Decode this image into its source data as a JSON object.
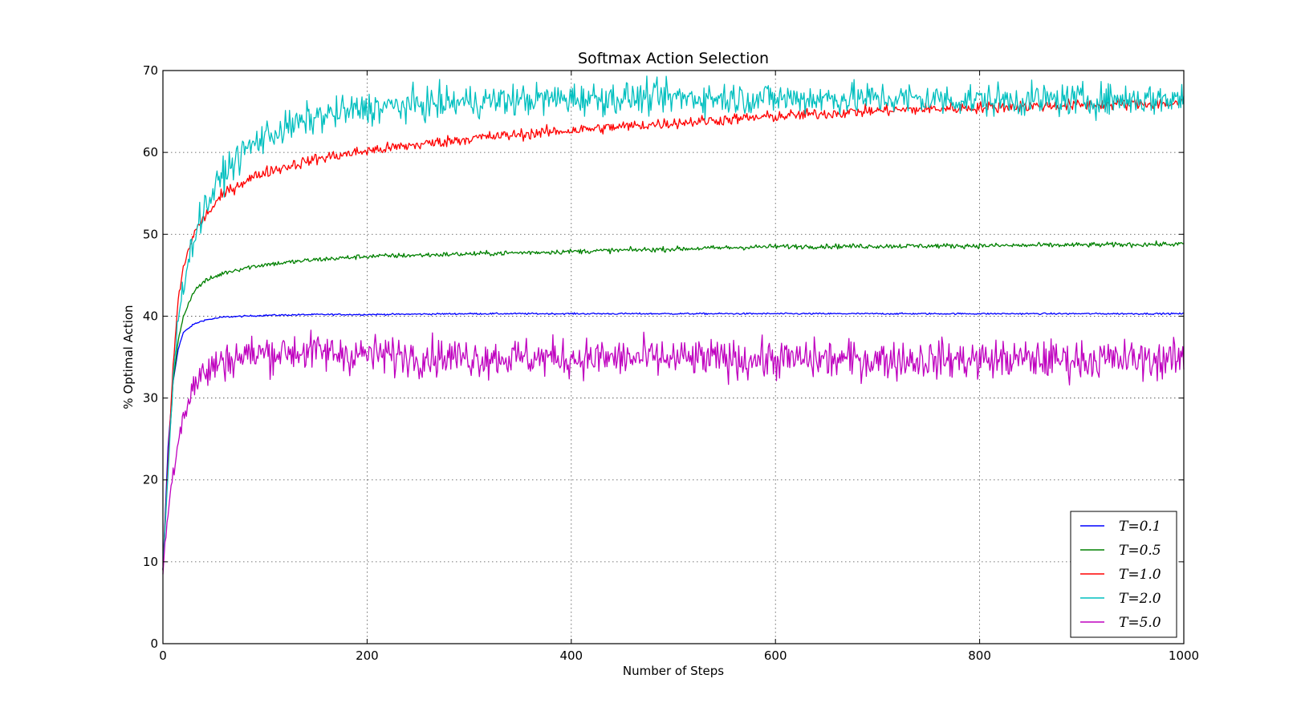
{
  "chart_data": {
    "type": "line",
    "title": "Softmax Action Selection",
    "xlabel": "Number of Steps",
    "ylabel": "% Optimal Action",
    "xlim": [
      0,
      1000
    ],
    "ylim": [
      0,
      70
    ],
    "xticks": [
      0,
      200,
      400,
      600,
      800,
      1000
    ],
    "yticks": [
      0,
      10,
      20,
      30,
      40,
      50,
      60,
      70
    ],
    "grid": true,
    "legend_position": "lower-right",
    "series": [
      {
        "name": "T=0.1",
        "color": "#0000ff",
        "noise": 0.05,
        "x": [
          0,
          5,
          10,
          15,
          20,
          30,
          40,
          60,
          80,
          100,
          150,
          200,
          300,
          400,
          600,
          800,
          1000
        ],
        "y": [
          9,
          24,
          32,
          36,
          38,
          39,
          39.5,
          39.9,
          40,
          40.1,
          40.2,
          40.2,
          40.3,
          40.3,
          40.3,
          40.3,
          40.3
        ]
      },
      {
        "name": "T=0.5",
        "color": "#008000",
        "noise": 0.15,
        "x": [
          0,
          5,
          10,
          15,
          20,
          30,
          40,
          60,
          80,
          100,
          150,
          200,
          300,
          400,
          500,
          600,
          800,
          1000
        ],
        "y": [
          9,
          22,
          32,
          37,
          40,
          43,
          44.2,
          45.3,
          45.9,
          46.3,
          46.9,
          47.3,
          47.6,
          47.9,
          48.2,
          48.5,
          48.6,
          48.8
        ]
      },
      {
        "name": "T=1.0",
        "color": "#ff0000",
        "noise": 0.35,
        "x": [
          0,
          5,
          10,
          15,
          20,
          30,
          40,
          60,
          80,
          100,
          150,
          200,
          300,
          400,
          500,
          600,
          700,
          800,
          900,
          1000
        ],
        "y": [
          9,
          22,
          34,
          42,
          46,
          50,
          52,
          55,
          56.5,
          57.6,
          59.2,
          60.2,
          61.7,
          62.7,
          63.6,
          64.4,
          65.1,
          65.5,
          65.8,
          66
        ]
      },
      {
        "name": "T=2.0",
        "color": "#00bfbf",
        "noise": 1.0,
        "x": [
          0,
          5,
          10,
          15,
          20,
          30,
          40,
          60,
          80,
          100,
          150,
          200,
          300,
          400,
          500,
          600,
          700,
          800,
          900,
          1000
        ],
        "y": [
          9,
          21,
          32,
          40,
          44,
          49.5,
          53,
          57.5,
          60.2,
          62,
          64.3,
          65.4,
          66.2,
          66.6,
          66.7,
          66.6,
          66.6,
          66.4,
          66.4,
          66.6
        ]
      },
      {
        "name": "T=5.0",
        "color": "#bf00bf",
        "noise": 1.2,
        "x": [
          0,
          5,
          10,
          15,
          20,
          30,
          40,
          60,
          80,
          100,
          130,
          150,
          200,
          300,
          400,
          600,
          800,
          1000
        ],
        "y": [
          9,
          16,
          21,
          25,
          28,
          31.5,
          33,
          34.6,
          35.2,
          35.5,
          35.7,
          35.6,
          35.3,
          35,
          34.9,
          34.7,
          34.7,
          34.7
        ]
      }
    ]
  }
}
